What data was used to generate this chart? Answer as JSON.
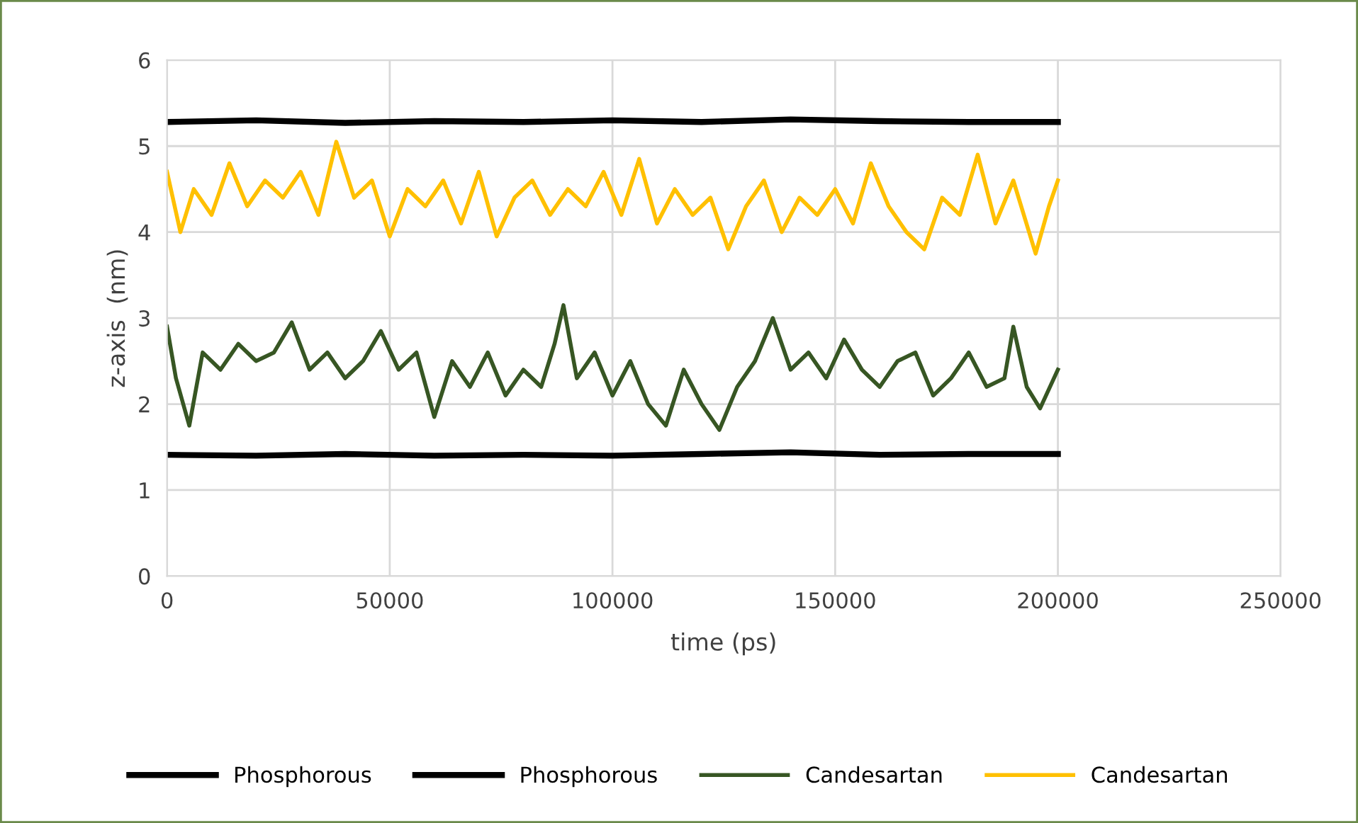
{
  "chart_data": {
    "type": "line",
    "xlabel": "time (ps)",
    "ylabel": "z-axis  (nm)",
    "xlim": [
      0,
      250000
    ],
    "xticks": [
      0,
      50000,
      100000,
      150000,
      200000,
      250000
    ],
    "ylim": [
      0,
      6
    ],
    "yticks": [
      0,
      1,
      2,
      3,
      4,
      5,
      6
    ],
    "grid": true,
    "legend": "bottom",
    "marker": "none",
    "line_style": "solid",
    "series": [
      {
        "name": "Phosphorous",
        "color": "#000000",
        "x": [
          0,
          20000,
          40000,
          60000,
          80000,
          100000,
          120000,
          140000,
          160000,
          180000,
          200000
        ],
        "values": [
          5.28,
          5.3,
          5.27,
          5.29,
          5.28,
          5.3,
          5.28,
          5.31,
          5.29,
          5.28,
          5.28
        ]
      },
      {
        "name": "Phosphorous",
        "color": "#000000",
        "x": [
          0,
          20000,
          40000,
          60000,
          80000,
          100000,
          120000,
          140000,
          160000,
          180000,
          200000
        ],
        "values": [
          1.41,
          1.4,
          1.42,
          1.4,
          1.41,
          1.4,
          1.42,
          1.44,
          1.41,
          1.42,
          1.42
        ]
      },
      {
        "name": "Candesartan",
        "color": "#375623",
        "x": [
          0,
          2000,
          5000,
          8000,
          12000,
          16000,
          20000,
          24000,
          28000,
          32000,
          36000,
          40000,
          44000,
          48000,
          52000,
          56000,
          60000,
          64000,
          68000,
          72000,
          76000,
          80000,
          84000,
          87000,
          89000,
          92000,
          96000,
          100000,
          104000,
          108000,
          112000,
          116000,
          120000,
          124000,
          128000,
          132000,
          136000,
          140000,
          144000,
          148000,
          152000,
          156000,
          160000,
          164000,
          168000,
          172000,
          176000,
          180000,
          184000,
          188000,
          190000,
          193000,
          196000,
          200000
        ],
        "values": [
          2.9,
          2.3,
          1.75,
          2.6,
          2.4,
          2.7,
          2.5,
          2.6,
          2.95,
          2.4,
          2.6,
          2.3,
          2.5,
          2.85,
          2.4,
          2.6,
          1.85,
          2.5,
          2.2,
          2.6,
          2.1,
          2.4,
          2.2,
          2.7,
          3.15,
          2.3,
          2.6,
          2.1,
          2.5,
          2.0,
          1.75,
          2.4,
          2.0,
          1.7,
          2.2,
          2.5,
          3.0,
          2.4,
          2.6,
          2.3,
          2.75,
          2.4,
          2.2,
          2.5,
          2.6,
          2.1,
          2.3,
          2.6,
          2.2,
          2.3,
          2.9,
          2.2,
          1.95,
          2.4
        ]
      },
      {
        "name": "Candesartan",
        "color": "#ffc000",
        "x": [
          0,
          3000,
          6000,
          10000,
          14000,
          18000,
          22000,
          26000,
          30000,
          34000,
          38000,
          42000,
          46000,
          50000,
          54000,
          58000,
          62000,
          66000,
          70000,
          74000,
          78000,
          82000,
          86000,
          90000,
          94000,
          98000,
          102000,
          106000,
          110000,
          114000,
          118000,
          122000,
          126000,
          130000,
          134000,
          138000,
          142000,
          146000,
          150000,
          154000,
          158000,
          162000,
          166000,
          170000,
          174000,
          178000,
          182000,
          186000,
          190000,
          195000,
          198000,
          200000
        ],
        "values": [
          4.7,
          4.0,
          4.5,
          4.2,
          4.8,
          4.3,
          4.6,
          4.4,
          4.7,
          4.2,
          5.05,
          4.4,
          4.6,
          3.95,
          4.5,
          4.3,
          4.6,
          4.1,
          4.7,
          3.95,
          4.4,
          4.6,
          4.2,
          4.5,
          4.3,
          4.7,
          4.2,
          4.85,
          4.1,
          4.5,
          4.2,
          4.4,
          3.8,
          4.3,
          4.6,
          4.0,
          4.4,
          4.2,
          4.5,
          4.1,
          4.8,
          4.3,
          4.0,
          3.8,
          4.4,
          4.2,
          4.9,
          4.1,
          4.6,
          3.75,
          4.3,
          4.6
        ]
      }
    ]
  }
}
